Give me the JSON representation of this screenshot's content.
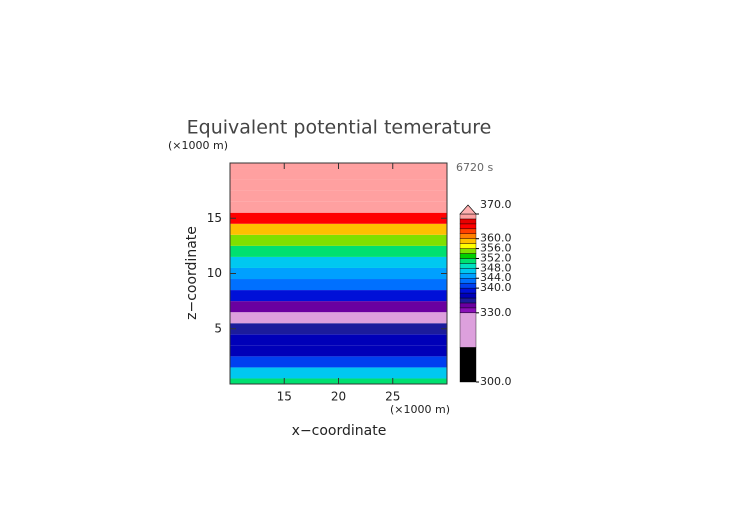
{
  "chart_data": {
    "type": "contour",
    "title": "Equivalent potential temerature",
    "y_unit": "(×1000 m)",
    "x_unit": "(×1000 m)",
    "time_label": "6720 s",
    "xlabel": "x−coordinate",
    "ylabel": "z−coordinate",
    "xlim": [
      10,
      30
    ],
    "ylim": [
      0,
      20
    ],
    "xticks": [
      15,
      20,
      25
    ],
    "yticks": [
      5,
      10,
      15
    ],
    "z": [
      0,
      1,
      2,
      3,
      4,
      5,
      6,
      7,
      8,
      9,
      10,
      11,
      12,
      13,
      14,
      15,
      16,
      17,
      18,
      19,
      20
    ],
    "values": [
      350,
      346,
      340,
      336,
      336,
      334,
      328,
      332,
      338,
      342,
      344,
      346,
      350,
      354,
      358,
      364,
      369,
      369,
      369,
      369,
      369
    ],
    "levels": [
      300,
      320,
      330,
      332,
      334,
      336,
      338,
      340,
      342,
      344,
      346,
      348,
      350,
      352,
      354,
      356,
      358,
      360,
      362,
      364,
      366,
      368,
      370
    ],
    "colors": [
      "#000000",
      "#dda0dd",
      "#8a10b8",
      "#6a00a0",
      "#1c1c9c",
      "#0000b8",
      "#0010d8",
      "#0040f0",
      "#0070ff",
      "#00a0ff",
      "#00c8f0",
      "#00e0c0",
      "#00e070",
      "#00d000",
      "#80e000",
      "#ffff00",
      "#ffc000",
      "#ff8000",
      "#ff4000",
      "#ff0000",
      "#e80000",
      "#ffa0a0"
    ],
    "over_color": "#ffb0b0",
    "colorbar_ticks": [
      {
        "value": 300,
        "label": "300.0"
      },
      {
        "value": 330,
        "label": "330.0"
      },
      {
        "value": 340,
        "label": "340.0"
      },
      {
        "value": 344,
        "label": "344.0"
      },
      {
        "value": 348,
        "label": "348.0"
      },
      {
        "value": 352,
        "label": "352.0"
      },
      {
        "value": 356,
        "label": "356.0"
      },
      {
        "value": 360,
        "label": "360.0"
      },
      {
        "value": 370,
        "label": "370.0"
      }
    ]
  }
}
